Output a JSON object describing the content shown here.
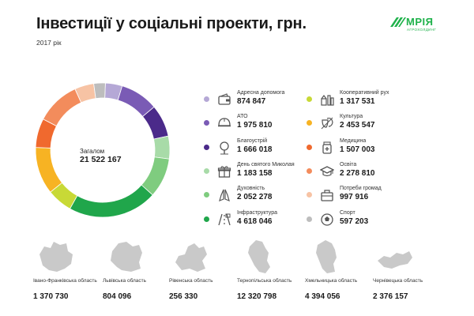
{
  "title": "Інвестиції у соціальні проекти, грн.",
  "subtitle": "2017 рік",
  "logo": {
    "word": "МРІЯ",
    "tagline": "АГРОХОЛДИНГ"
  },
  "total": {
    "label": "Загалом",
    "value": "21 522 167"
  },
  "colors": {
    "Адресна допомога": "#b5a8d6",
    "АТО": "#7a5bb5",
    "Благоустрій": "#4b2a8a",
    "День святого Миколая": "#a8dba8",
    "Духовність": "#7fcc7f",
    "Інфраструктура": "#20a64b",
    "Кооперативний рух": "#c8d936",
    "Культура": "#f7b323",
    "Медицина": "#f0692e",
    "Освіта": "#f38c5c",
    "Потреби громад": "#f7c3a4",
    "Спорт": "#bdbdbd"
  },
  "chart_data": {
    "type": "pie",
    "title": "Інвестиції у соціальні проекти, грн.",
    "subtitle": "2017 рік",
    "slices": [
      {
        "label": "Адресна допомога",
        "value": 874847,
        "display": "874 847",
        "icon": "wallet-icon"
      },
      {
        "label": "АТО",
        "value": 1975810,
        "display": "1 975 810",
        "icon": "helmet-icon"
      },
      {
        "label": "Благоустрій",
        "value": 1666018,
        "display": "1 666 018",
        "icon": "tree-icon"
      },
      {
        "label": "День святого Миколая",
        "value": 1183158,
        "display": "1 183 158",
        "icon": "gift-icon"
      },
      {
        "label": "Духовність",
        "value": 2052278,
        "display": "2 052 278",
        "icon": "praying-hands-icon"
      },
      {
        "label": "Інфраструктура",
        "value": 4618046,
        "display": "4 618 046",
        "icon": "road-icon"
      },
      {
        "label": "Кооперативний рух",
        "value": 1317531,
        "display": "1 317 531",
        "icon": "farm-icon"
      },
      {
        "label": "Культура",
        "value": 2453547,
        "display": "2 453 547",
        "icon": "theater-icon"
      },
      {
        "label": "Медицина",
        "value": 1507003,
        "display": "1 507 003",
        "icon": "medicine-icon"
      },
      {
        "label": "Освіта",
        "value": 2278810,
        "display": "2 278 810",
        "icon": "graduation-cap-icon"
      },
      {
        "label": "Потреби громад",
        "value": 997916,
        "display": "997 916",
        "icon": "toolbox-icon"
      },
      {
        "label": "Спорт",
        "value": 597203,
        "display": "597 203",
        "icon": "ball-icon"
      }
    ],
    "legend": "right"
  },
  "regions": [
    {
      "name": "Івано-Франківська область",
      "value": "1 370 730",
      "icon": "ivano-frankivsk-map-icon"
    },
    {
      "name": "Львівська область",
      "value": "804 096",
      "icon": "lviv-map-icon"
    },
    {
      "name": "Рівенська область",
      "value": "256 330",
      "icon": "rivne-map-icon"
    },
    {
      "name": "Тернопільська область",
      "value": "12 320 798",
      "icon": "ternopil-map-icon"
    },
    {
      "name": "Хмельницька область",
      "value": "4 394 056",
      "icon": "khmelnytskyi-map-icon"
    },
    {
      "name": "Чернівецька область",
      "value": "2 376 157",
      "icon": "chernivtsi-map-icon"
    }
  ]
}
